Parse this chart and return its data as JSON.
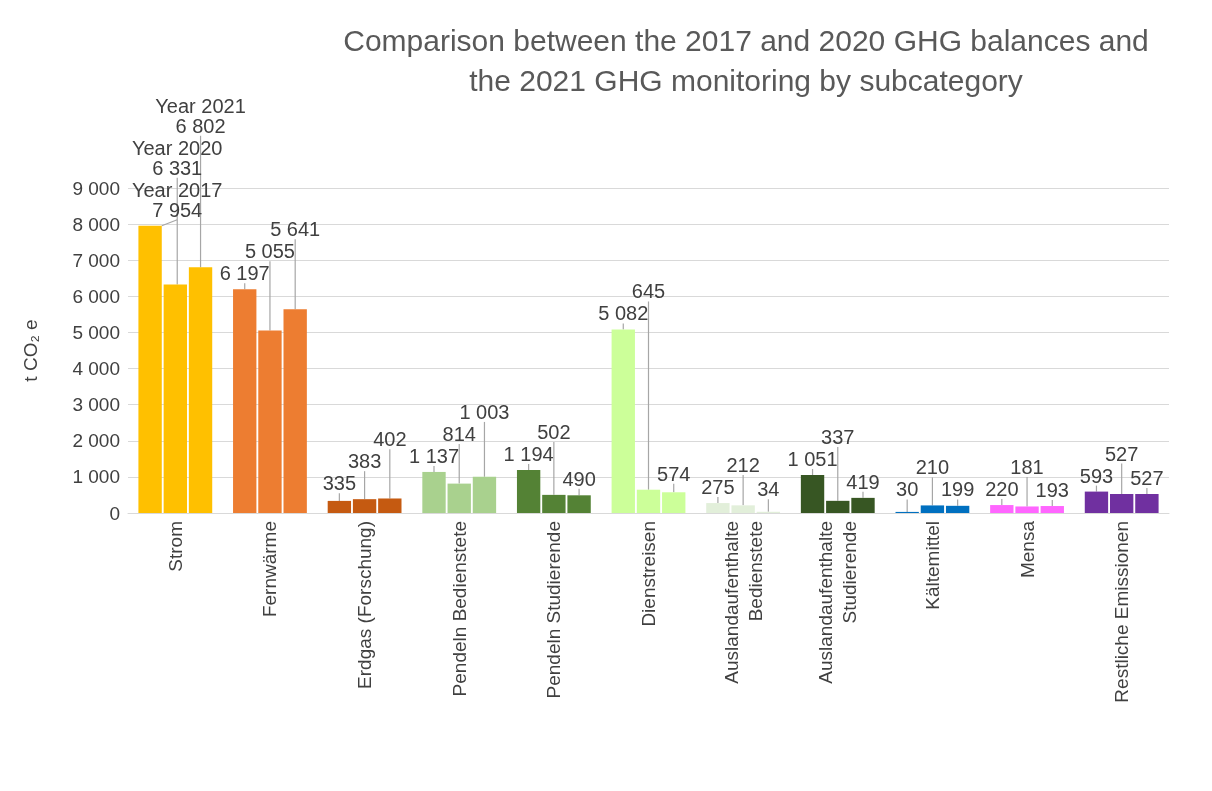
{
  "chart_data": {
    "type": "bar",
    "title": "Comparison between the 2017 and 2020 GHG balances and\nthe 2021 GHG monitoring by subcategory",
    "ylabel": "t CO₂ e",
    "categories": [
      "Strom",
      "Fernwärme",
      "Erdgas (Forschung)",
      "Pendeln Bedienstete",
      "Pendeln Studierende",
      "Dienstreisen",
      "Auslandaufenthalte\nBedienstete",
      "Auslandaufenthalte\nStudierende",
      "Kältemittel",
      "Mensa",
      "Restliche Emissionen"
    ],
    "series": [
      {
        "name": "Year 2017",
        "colors": [
          "#ffc000",
          "#ed7d31",
          "#c55a11",
          "#a9d18e",
          "#548235",
          "#ccff99",
          "#e2efda",
          "#375623",
          "#0070c0",
          "#ff66ff",
          "#7030a0"
        ],
        "values": [
          7954,
          6197,
          335,
          1137,
          1194,
          5082,
          275,
          1051,
          30,
          220,
          593
        ],
        "value_labels": [
          "7 954",
          "6 197",
          "335",
          "1 137",
          "1 194",
          "5 082",
          "275",
          "1 051",
          "30",
          "220",
          "593"
        ]
      },
      {
        "name": "Year 2020",
        "colors": [
          "#ffc000",
          "#ed7d31",
          "#c55a11",
          "#a9d18e",
          "#548235",
          "#ccff99",
          "#e2efda",
          "#375623",
          "#0070c0",
          "#ff66ff",
          "#7030a0"
        ],
        "values": [
          6331,
          5055,
          383,
          814,
          502,
          645,
          212,
          337,
          210,
          181,
          527
        ],
        "value_labels": [
          "6 331",
          "5 055",
          "383",
          "814",
          "502",
          "645",
          "212",
          "337",
          "210",
          "181",
          "527"
        ]
      },
      {
        "name": "Year 2021",
        "colors": [
          "#ffc000",
          "#ed7d31",
          "#c55a11",
          "#a9d18e",
          "#548235",
          "#ccff99",
          "#e2efda",
          "#375623",
          "#0070c0",
          "#ff66ff",
          "#7030a0"
        ],
        "values": [
          6802,
          5641,
          402,
          1003,
          490,
          574,
          34,
          419,
          199,
          193,
          527
        ],
        "value_labels": [
          "6 802",
          "5 641",
          "402",
          "1 003",
          "490",
          "574",
          "34",
          "419",
          "199",
          "193",
          "527"
        ]
      }
    ],
    "ylim": [
      0,
      9000
    ],
    "yticks": [
      {
        "value": 0,
        "label": "0"
      },
      {
        "value": 1000,
        "label": "1 000"
      },
      {
        "value": 2000,
        "label": "2 000"
      },
      {
        "value": 3000,
        "label": "3 000"
      },
      {
        "value": 4000,
        "label": "4 000"
      },
      {
        "value": 5000,
        "label": "5 000"
      },
      {
        "value": 6000,
        "label": "6 000"
      },
      {
        "value": 7000,
        "label": "7 000"
      },
      {
        "value": 8000,
        "label": "8 000"
      },
      {
        "value": 9000,
        "label": "9 000"
      }
    ],
    "grid": "y",
    "legend": false
  }
}
